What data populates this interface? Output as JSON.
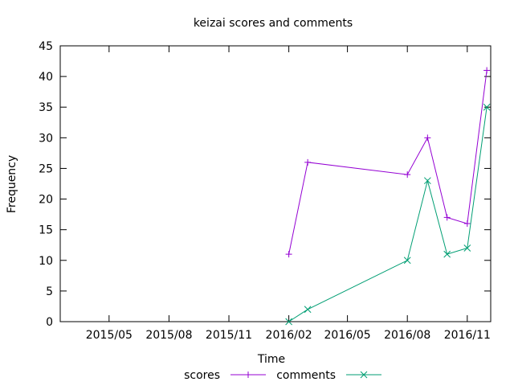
{
  "chart_data": {
    "type": "line",
    "title": "keizai scores and comments",
    "xlabel": "Time",
    "ylabel": "Frequency",
    "ylim": [
      0,
      45
    ],
    "xlim": [
      "2015-02-15",
      "2016-12-07"
    ],
    "yticks": [
      0,
      5,
      10,
      15,
      20,
      25,
      30,
      35,
      40,
      45
    ],
    "xticks": [
      {
        "date": "2015-05-01",
        "label": "2015/05"
      },
      {
        "date": "2015-08-01",
        "label": "2015/08"
      },
      {
        "date": "2015-11-01",
        "label": "2015/11"
      },
      {
        "date": "2016-02-01",
        "label": "2016/02"
      },
      {
        "date": "2016-05-01",
        "label": "2016/05"
      },
      {
        "date": "2016-08-01",
        "label": "2016/08"
      },
      {
        "date": "2016-11-01",
        "label": "2016/11"
      }
    ],
    "grid": false,
    "legend": "bottom",
    "series": [
      {
        "name": "scores",
        "color": "#9400d3",
        "marker": "plus",
        "x": [
          "2016-02-01",
          "2016-03-01",
          "2016-08-01",
          "2016-09-01",
          "2016-10-01",
          "2016-11-01",
          "2016-12-01"
        ],
        "y": [
          11,
          26,
          24,
          30,
          17,
          16,
          41
        ]
      },
      {
        "name": "comments",
        "color": "#009e73",
        "marker": "cross",
        "x": [
          "2016-02-01",
          "2016-03-01",
          "2016-08-01",
          "2016-09-01",
          "2016-10-01",
          "2016-11-01",
          "2016-12-01"
        ],
        "y": [
          0,
          2,
          10,
          23,
          11,
          12,
          35
        ]
      }
    ]
  }
}
